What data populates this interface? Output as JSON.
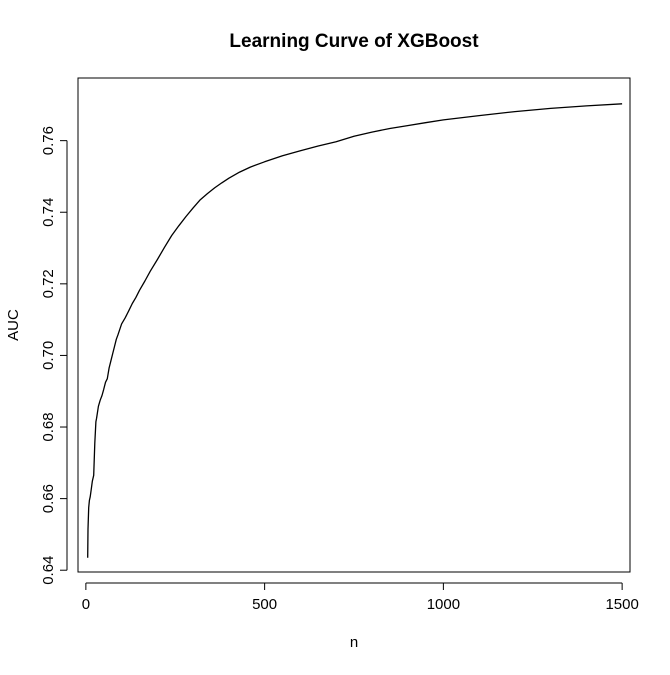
{
  "chart_data": {
    "type": "line",
    "title": "Learning Curve of XGBoost",
    "xlabel": "n",
    "ylabel": "AUC",
    "xlim": [
      -22,
      1522
    ],
    "ylim": [
      0.6395,
      0.7775
    ],
    "x_ticks": [
      0,
      500,
      1000,
      1500
    ],
    "x_tick_labels": [
      "0",
      "500",
      "1000",
      "1500"
    ],
    "y_ticks": [
      0.64,
      0.66,
      0.68,
      0.7,
      0.72,
      0.74,
      0.76
    ],
    "y_tick_labels": [
      "0.64",
      "0.66",
      "0.68",
      "0.70",
      "0.72",
      "0.74",
      "0.76"
    ],
    "grid": false,
    "legend": "none",
    "series": [
      {
        "x": [
          5,
          6,
          8,
          10,
          12,
          15,
          18,
          22,
          25,
          28,
          30,
          35,
          40,
          45,
          50,
          55,
          60,
          65,
          70,
          75,
          80,
          85,
          90,
          100,
          110,
          120,
          130,
          140,
          150,
          165,
          180,
          200,
          220,
          240,
          260,
          280,
          300,
          320,
          340,
          360,
          380,
          400,
          430,
          460,
          500,
          550,
          600,
          650,
          700,
          750,
          800,
          850,
          900,
          950,
          1000,
          1100,
          1200,
          1300,
          1400,
          1500
        ],
        "values": [
          0.6435,
          0.6515,
          0.6575,
          0.6595,
          0.6605,
          0.6625,
          0.6648,
          0.6665,
          0.6755,
          0.6815,
          0.6825,
          0.6858,
          0.6875,
          0.6888,
          0.6905,
          0.6925,
          0.6935,
          0.6965,
          0.6985,
          0.7005,
          0.7025,
          0.7045,
          0.7058,
          0.7088,
          0.7105,
          0.7125,
          0.7145,
          0.7162,
          0.7182,
          0.7208,
          0.7235,
          0.7268,
          0.7302,
          0.7335,
          0.7362,
          0.7388,
          0.7412,
          0.7435,
          0.7452,
          0.7468,
          0.7482,
          0.7495,
          0.7512,
          0.7526,
          0.7541,
          0.7558,
          0.7572,
          0.7585,
          0.7597,
          0.7612,
          0.7624,
          0.7634,
          0.7642,
          0.765,
          0.7658,
          0.767,
          0.7681,
          0.769,
          0.7697,
          0.7703
        ]
      }
    ]
  }
}
